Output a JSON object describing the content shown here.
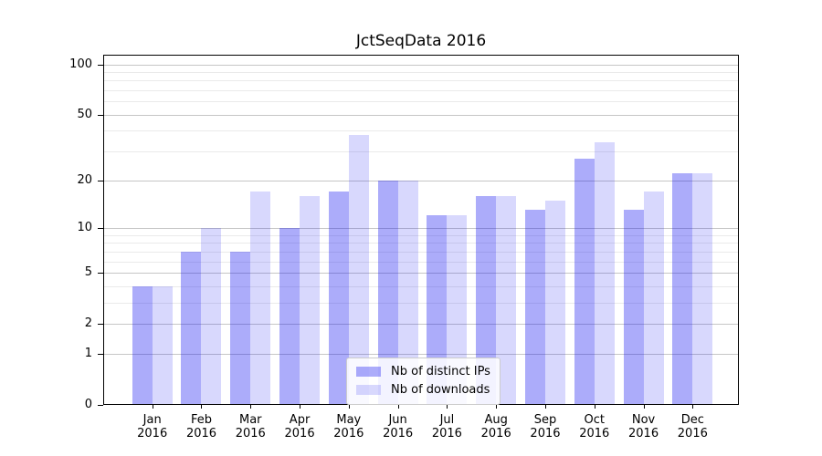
{
  "chart_data": {
    "type": "bar",
    "title": "JctSeqData 2016",
    "x_months": [
      "Jan",
      "Feb",
      "Mar",
      "Apr",
      "May",
      "Jun",
      "Jul",
      "Aug",
      "Sep",
      "Oct",
      "Nov",
      "Dec"
    ],
    "x_year": "2016",
    "series": [
      {
        "name": "Nb of distinct IPs",
        "color": "#0b0bf0",
        "opacity": 0.34,
        "values": [
          4,
          7,
          7,
          10,
          17,
          20,
          12,
          16,
          13,
          27,
          13,
          22
        ]
      },
      {
        "name": "Nb of downloads",
        "color": "#0b0bf0",
        "opacity": 0.16,
        "values": [
          4,
          10,
          17,
          16,
          38,
          20,
          12,
          16,
          15,
          34,
          17,
          22
        ]
      }
    ],
    "yscale": "log1p",
    "ylim": [
      0,
      114
    ],
    "yticks_labeled": [
      0,
      1,
      2,
      5,
      10,
      20,
      50,
      100
    ],
    "yticks_minor": [
      3,
      4,
      6,
      7,
      8,
      9,
      30,
      40,
      60,
      70,
      80,
      90
    ],
    "grid": {
      "orientation": "horizontal",
      "major_color": "#c6c6c6",
      "minor_color": "#eaeaea"
    },
    "legend": {
      "position": "lower center"
    },
    "xlabel": "",
    "ylabel": ""
  }
}
